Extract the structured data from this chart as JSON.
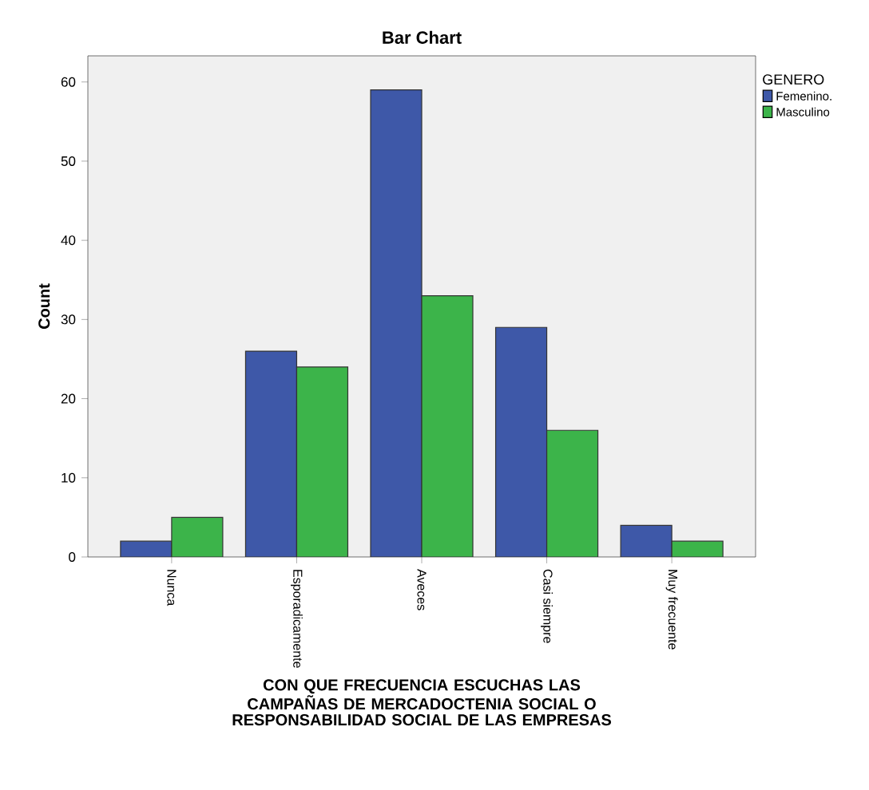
{
  "chart_data": {
    "type": "bar",
    "title": "Bar Chart",
    "xlabel": "CON QUE FRECUENCIA ESCUCHAS LAS CAMPAÑAS DE MERCADOCTENIA SOCIAL O RESPONSABILIDAD SOCIAL DE LAS EMPRESAS",
    "ylabel": "Count",
    "legend_title": "GENERO",
    "legend": "top right",
    "categories": [
      "Nunca",
      "Esporadicamente",
      "Aveces",
      "Casi siempre",
      "Muy frecuente"
    ],
    "series": [
      {
        "name": "Femenino.",
        "color": "#3e58a8",
        "values": [
          2,
          26,
          59,
          29,
          4
        ]
      },
      {
        "name": "Masculino",
        "color": "#3cb44a",
        "values": [
          5,
          24,
          33,
          16,
          2
        ]
      }
    ],
    "ylim": [
      0,
      63.3
    ],
    "yticks": [
      0,
      10,
      20,
      30,
      40,
      50,
      60
    ]
  }
}
